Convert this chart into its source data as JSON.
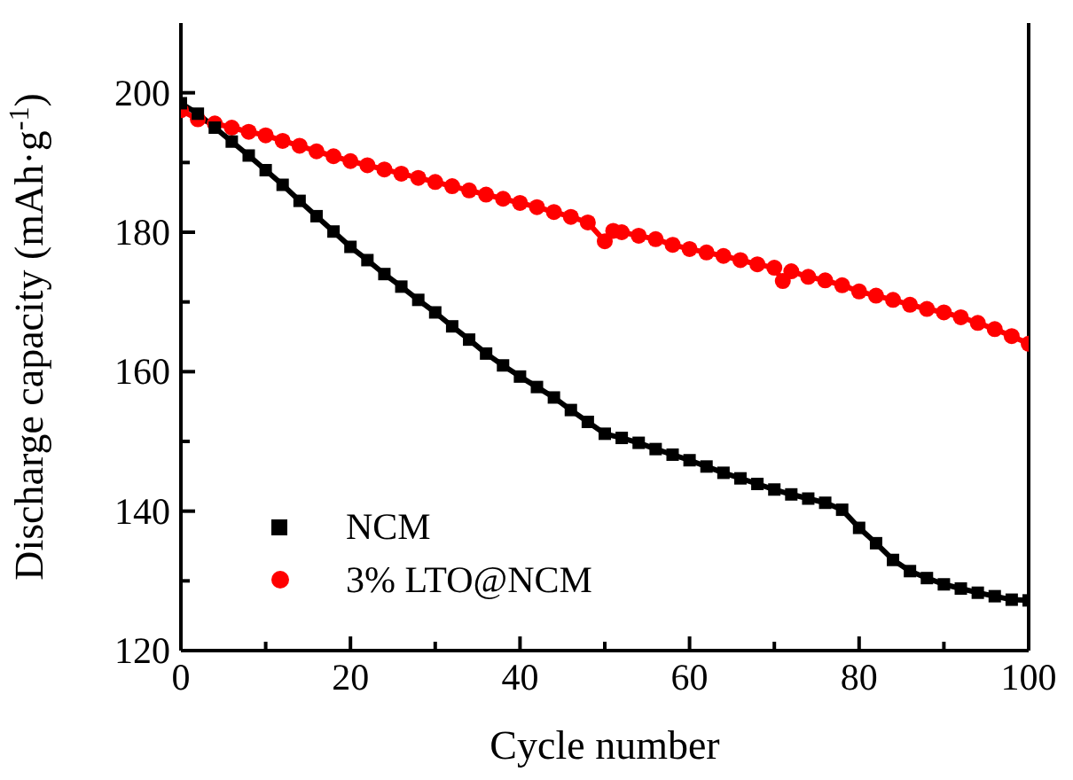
{
  "chart_data": {
    "type": "line",
    "xlabel": "Cycle number",
    "ylabel": "Discharge capacity (mAh·g$^{-1}$)",
    "xlim": [
      0,
      100
    ],
    "ylim": [
      120,
      210
    ],
    "xticks": [
      0,
      {
        "value": 10,
        "label": null
      },
      20,
      {
        "value": 30,
        "label": null
      },
      40,
      {
        "value": 50,
        "label": null
      },
      60,
      {
        "value": 70,
        "label": null
      },
      80,
      {
        "value": 90,
        "label": null
      },
      100
    ],
    "yticks": [
      120,
      {
        "value": 130,
        "label": null
      },
      140,
      {
        "value": 150,
        "label": null
      },
      160,
      {
        "value": 170,
        "label": null
      },
      180,
      {
        "value": 190,
        "label": null
      },
      200
    ],
    "legend": "bottom left",
    "grid": false,
    "series": [
      {
        "name": "NCM",
        "color": "#000000",
        "marker": "square",
        "x": [
          0,
          2,
          4,
          6,
          8,
          10,
          12,
          14,
          16,
          18,
          20,
          22,
          24,
          26,
          28,
          30,
          32,
          34,
          36,
          38,
          40,
          42,
          44,
          46,
          48,
          50,
          52,
          54,
          56,
          58,
          60,
          62,
          64,
          66,
          68,
          70,
          72,
          74,
          76,
          78,
          80,
          82,
          84,
          86,
          88,
          90,
          92,
          94,
          96,
          98,
          100
        ],
        "values": [
          198.5,
          197,
          195,
          193,
          191,
          188.9,
          186.8,
          184.5,
          182.3,
          180.1,
          177.9,
          176,
          174,
          172.2,
          170.3,
          168.5,
          166.5,
          164.6,
          162.6,
          160.9,
          159.3,
          157.8,
          156.3,
          154.5,
          152.8,
          151.1,
          150.5,
          149.8,
          148.9,
          148.1,
          147.3,
          146.4,
          145.5,
          144.7,
          143.9,
          143.1,
          142.4,
          141.8,
          141.2,
          140.2,
          137.6,
          135.4,
          133,
          131.4,
          130.4,
          129.5,
          128.9,
          128.3,
          127.8,
          127.3,
          127.2
        ]
      },
      {
        "name": "3% LTO@NCM",
        "color": "#ff0000",
        "marker": "circle",
        "x": [
          0,
          2,
          4,
          6,
          8,
          10,
          12,
          14,
          16,
          18,
          20,
          22,
          24,
          26,
          28,
          30,
          32,
          34,
          36,
          38,
          40,
          42,
          44,
          46,
          48,
          50,
          51,
          52,
          54,
          56,
          58,
          60,
          62,
          64,
          66,
          68,
          70,
          71,
          72,
          74,
          76,
          78,
          80,
          82,
          84,
          86,
          88,
          90,
          92,
          94,
          96,
          98,
          100
        ],
        "values": [
          197.5,
          196.2,
          195.6,
          195,
          194.4,
          193.9,
          193.1,
          192.4,
          191.6,
          190.9,
          190.2,
          189.6,
          189,
          188.4,
          187.8,
          187.2,
          186.6,
          186,
          185.4,
          184.8,
          184.2,
          183.6,
          182.9,
          182.2,
          181.4,
          178.7,
          180.2,
          180,
          179.5,
          179,
          178.2,
          177.6,
          177.1,
          176.6,
          176,
          175.4,
          174.9,
          173,
          174.4,
          173.6,
          173.1,
          172.4,
          171.5,
          170.9,
          170.3,
          169.6,
          169,
          168.5,
          167.8,
          167,
          166.1,
          165.1,
          164
        ]
      }
    ]
  }
}
